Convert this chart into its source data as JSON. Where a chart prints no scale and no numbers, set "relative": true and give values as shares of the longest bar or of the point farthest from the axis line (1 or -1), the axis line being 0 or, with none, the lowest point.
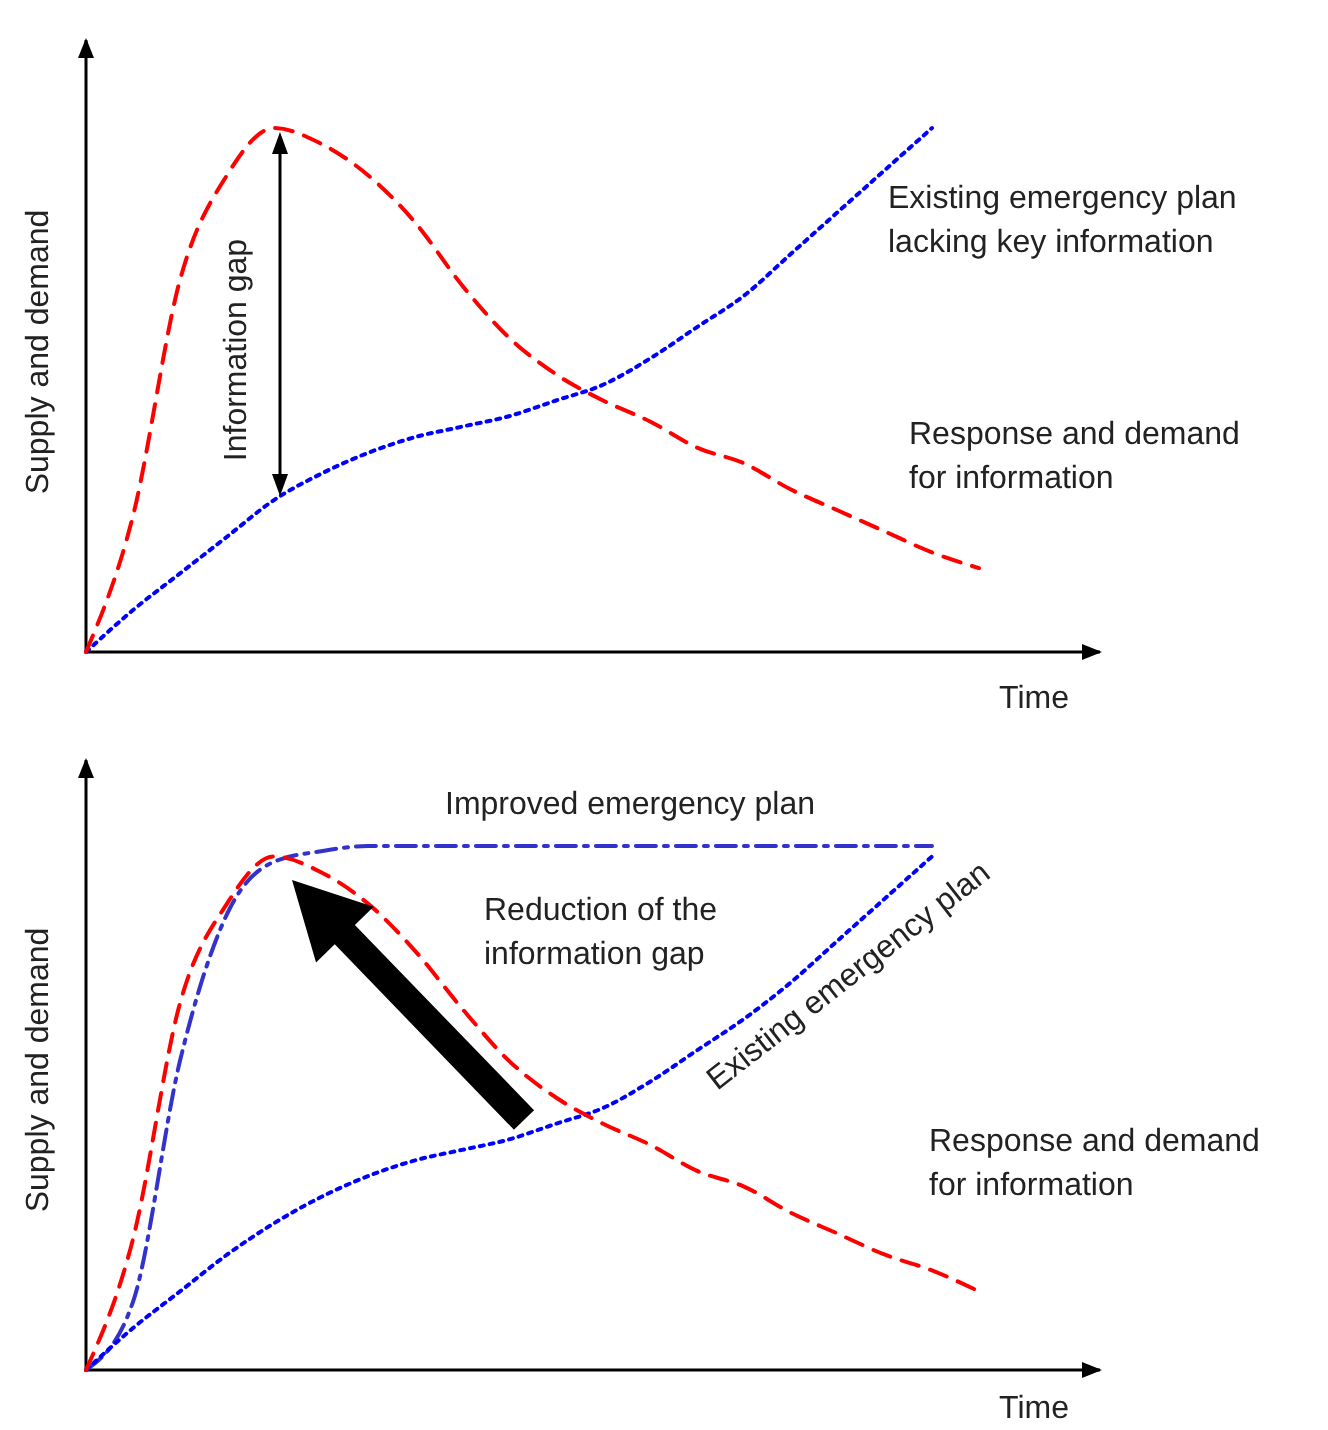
{
  "chart_data": [
    {
      "type": "line",
      "relative": true,
      "xlabel": "Time",
      "ylabel": "Supply and demand",
      "categories": [
        null,
        null,
        null,
        null,
        null,
        null,
        null,
        null,
        null,
        null,
        null,
        null,
        null,
        null,
        null,
        null,
        null,
        null,
        null,
        null
      ],
      "series": [
        {
          "name": "Existing emergency plan lacking key information",
          "color": "#0000ff",
          "line_style": "dotted",
          "values": [
            0,
            0.08,
            0.15,
            0.22,
            0.29,
            0.34,
            0.38,
            0.41,
            0.43,
            0.45,
            0.48,
            0.51,
            0.56,
            0.62,
            0.68,
            0.76,
            0.84,
            0.92,
            1.0,
            null
          ]
        },
        {
          "name": "Response and demand for information",
          "color": "#ff0000",
          "line_style": "dashed",
          "values": [
            0,
            0.26,
            0.71,
            0.91,
            1.0,
            0.97,
            0.91,
            0.82,
            0.7,
            0.6,
            0.53,
            0.48,
            0.44,
            0.39,
            0.36,
            0.31,
            0.27,
            0.23,
            0.19,
            0.16
          ]
        }
      ],
      "annotations": [
        "Information gap"
      ]
    },
    {
      "type": "line",
      "relative": true,
      "xlabel": "Time",
      "ylabel": "Supply and demand",
      "categories": [
        null,
        null,
        null,
        null,
        null,
        null,
        null,
        null,
        null,
        null,
        null,
        null,
        null,
        null,
        null,
        null,
        null,
        null,
        null,
        null
      ],
      "series": [
        {
          "name": "Improved emergency plan",
          "color": "#3333cc",
          "line_style": "dashdot",
          "values": [
            0,
            0.13,
            0.59,
            0.87,
            0.97,
            0.99,
            1.0,
            1.0,
            1.0,
            1.0,
            1.0,
            1.0,
            1.0,
            1.0,
            1.0,
            1.0,
            1.0,
            1.0,
            1.0,
            null
          ]
        },
        {
          "name": "Existing emergency plan",
          "color": "#0000ff",
          "line_style": "dotted",
          "values": [
            0,
            0.08,
            0.15,
            0.22,
            0.28,
            0.33,
            0.37,
            0.4,
            0.42,
            0.44,
            0.47,
            0.5,
            0.55,
            0.61,
            0.67,
            0.74,
            0.82,
            0.9,
            0.98,
            null
          ]
        },
        {
          "name": "Response and demand for information",
          "color": "#ff0000",
          "line_style": "dashed",
          "values": [
            0,
            0.25,
            0.7,
            0.89,
            0.98,
            0.95,
            0.89,
            0.8,
            0.69,
            0.59,
            0.52,
            0.47,
            0.43,
            0.38,
            0.35,
            0.3,
            0.26,
            0.22,
            0.19,
            0.15
          ]
        }
      ],
      "annotations": [
        "Reduction of the information gap"
      ]
    }
  ]
}
